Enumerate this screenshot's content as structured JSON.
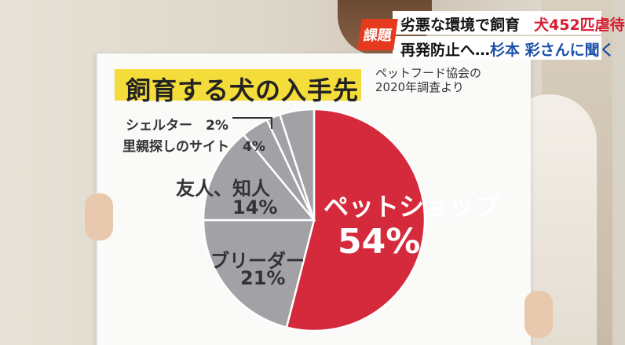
{
  "news_banner": {
    "badge": "課題",
    "line1_a": "劣悪な環境で飼育",
    "line1_b": "犬452匹虐待",
    "line2_a": "再発防止へ…",
    "line2_b": "杉本 彩さんに聞く"
  },
  "colors": {
    "petshop": "#d42a3b",
    "others": "#a2a1a6",
    "title_bg": "#f4dc3a",
    "badge": "#e63a1e",
    "banner_red": "#d81b30",
    "banner_blue": "#1a4fa8"
  },
  "chart_data": {
    "type": "pie",
    "title": "飼育する犬の入手先",
    "source": [
      "ペットフード協会の",
      "2020年調査より"
    ],
    "slices": [
      {
        "name": "ペットショップ",
        "value": 54,
        "label": "54%"
      },
      {
        "name": "ブリーダー",
        "value": 21,
        "label": "21%"
      },
      {
        "name": "友人、知人",
        "value": 14,
        "label": "14%"
      },
      {
        "name": "里親探しのサイト",
        "value": 4,
        "label": "4%"
      },
      {
        "name": "シェルター",
        "value": 2,
        "label": "2%"
      },
      {
        "name": "",
        "value": 5,
        "label": ""
      }
    ]
  },
  "labels": {
    "shelter": "シェルター　2%",
    "satooya": "里親探しのサイト　4%",
    "friends_name": "友人、知人",
    "friends_pct": "14%",
    "breeder_name": "ブリーダー",
    "breeder_pct": "21%",
    "petshop_name": "ペットショップ",
    "petshop_pct": "54%"
  }
}
